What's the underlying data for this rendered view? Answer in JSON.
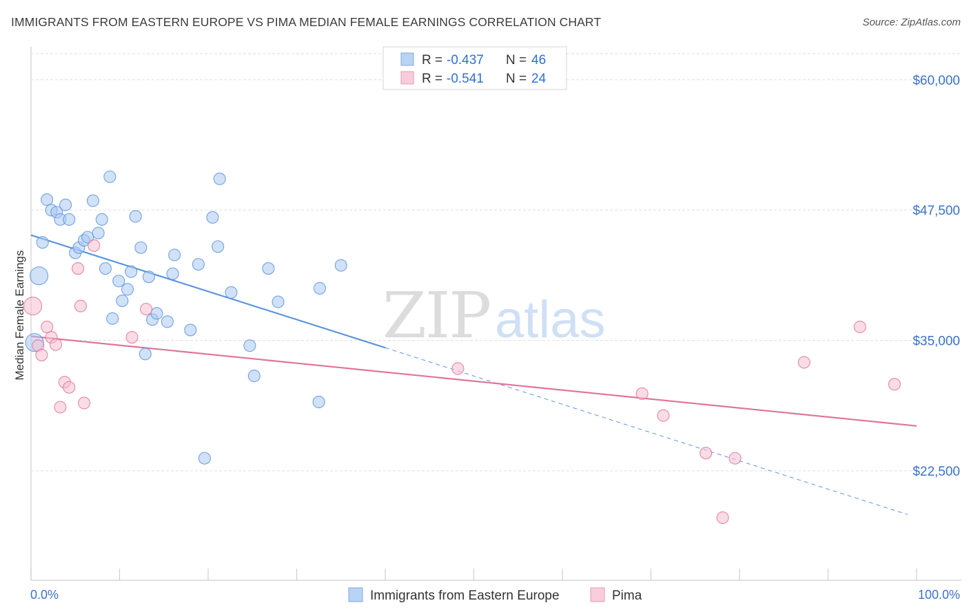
{
  "header": {
    "title": "IMMIGRANTS FROM EASTERN EUROPE VS PIMA MEDIAN FEMALE EARNINGS CORRELATION CHART",
    "source": "Source: ZipAtlas.com"
  },
  "watermark": {
    "zip": "ZIP",
    "atlas": "atlas"
  },
  "legend": {
    "rows": [
      {
        "r_label": "R =",
        "r_value": "-0.437",
        "n_label": "N =",
        "n_value": "46",
        "color": "#9dc3f0"
      },
      {
        "r_label": "R =",
        "r_value": "-0.541",
        "n_label": "N =",
        "n_value": "24",
        "color": "#f5b6c9"
      }
    ]
  },
  "chart_data": {
    "type": "scatter",
    "ylabel": "Median Female Earnings",
    "xlabel": "",
    "x_tick_labels": [
      "0.0%",
      "100.0%"
    ],
    "y_tick_labels": [
      "$60,000",
      "$47,500",
      "$35,000",
      "$22,500"
    ],
    "y_ticks": [
      60000,
      47500,
      35000,
      22500
    ],
    "xlim": [
      0,
      100
    ],
    "ylim": [
      12000,
      62500
    ],
    "grid": true,
    "legend_position": "top-center",
    "series": [
      {
        "name": "Immigrants from Eastern Europe",
        "color": "#5b94e0",
        "fill": "#a9c9f2",
        "trend": {
          "x": [
            0,
            40
          ],
          "y": [
            45100,
            34300
          ],
          "dashed_to": {
            "x": 99,
            "y": 18300
          }
        },
        "points": [
          {
            "x": 0.4,
            "y": 34800,
            "big": true
          },
          {
            "x": 0.9,
            "y": 41200,
            "big": true
          },
          {
            "x": 1.3,
            "y": 44400
          },
          {
            "x": 1.8,
            "y": 48500
          },
          {
            "x": 2.3,
            "y": 47500
          },
          {
            "x": 2.9,
            "y": 47300
          },
          {
            "x": 3.3,
            "y": 46600
          },
          {
            "x": 3.9,
            "y": 48000
          },
          {
            "x": 4.3,
            "y": 46600
          },
          {
            "x": 5.0,
            "y": 43400
          },
          {
            "x": 5.4,
            "y": 43900
          },
          {
            "x": 6.0,
            "y": 44600
          },
          {
            "x": 6.4,
            "y": 44900
          },
          {
            "x": 7.0,
            "y": 48400
          },
          {
            "x": 7.6,
            "y": 45300
          },
          {
            "x": 8.0,
            "y": 46600
          },
          {
            "x": 8.4,
            "y": 41900
          },
          {
            "x": 8.9,
            "y": 50700
          },
          {
            "x": 9.2,
            "y": 37100
          },
          {
            "x": 9.9,
            "y": 40700
          },
          {
            "x": 10.3,
            "y": 38800
          },
          {
            "x": 10.9,
            "y": 39900
          },
          {
            "x": 11.3,
            "y": 41600
          },
          {
            "x": 11.8,
            "y": 46900
          },
          {
            "x": 12.4,
            "y": 43900
          },
          {
            "x": 12.9,
            "y": 33700
          },
          {
            "x": 13.3,
            "y": 41100
          },
          {
            "x": 13.7,
            "y": 37000
          },
          {
            "x": 14.2,
            "y": 37600
          },
          {
            "x": 15.4,
            "y": 36800
          },
          {
            "x": 16.2,
            "y": 43200
          },
          {
            "x": 16.0,
            "y": 41400
          },
          {
            "x": 18.0,
            "y": 36000
          },
          {
            "x": 18.9,
            "y": 42300
          },
          {
            "x": 19.6,
            "y": 23700
          },
          {
            "x": 20.5,
            "y": 46800
          },
          {
            "x": 21.1,
            "y": 44000
          },
          {
            "x": 21.3,
            "y": 50500
          },
          {
            "x": 22.6,
            "y": 39600
          },
          {
            "x": 24.7,
            "y": 34500
          },
          {
            "x": 25.2,
            "y": 31600
          },
          {
            "x": 26.8,
            "y": 41900
          },
          {
            "x": 27.9,
            "y": 38700
          },
          {
            "x": 32.5,
            "y": 29100
          },
          {
            "x": 32.6,
            "y": 40000
          },
          {
            "x": 35.0,
            "y": 42200
          }
        ]
      },
      {
        "name": "Pima",
        "color": "#e0739a",
        "fill": "#f6c0d2",
        "trend": {
          "x": [
            0,
            100
          ],
          "y": [
            35400,
            26800
          ]
        },
        "points": [
          {
            "x": 0.2,
            "y": 38300,
            "big": true
          },
          {
            "x": 0.8,
            "y": 34500
          },
          {
            "x": 1.2,
            "y": 33600
          },
          {
            "x": 1.8,
            "y": 36300
          },
          {
            "x": 2.3,
            "y": 35300
          },
          {
            "x": 2.8,
            "y": 34600
          },
          {
            "x": 3.3,
            "y": 28600
          },
          {
            "x": 3.8,
            "y": 31000
          },
          {
            "x": 4.3,
            "y": 30500
          },
          {
            "x": 5.3,
            "y": 41900
          },
          {
            "x": 5.6,
            "y": 38300
          },
          {
            "x": 6.0,
            "y": 29000
          },
          {
            "x": 7.1,
            "y": 44100
          },
          {
            "x": 11.4,
            "y": 35300
          },
          {
            "x": 13.0,
            "y": 38000
          },
          {
            "x": 48.2,
            "y": 32300
          },
          {
            "x": 69.0,
            "y": 29900
          },
          {
            "x": 71.4,
            "y": 27800
          },
          {
            "x": 76.2,
            "y": 24200
          },
          {
            "x": 78.1,
            "y": 18000
          },
          {
            "x": 79.5,
            "y": 23700
          },
          {
            "x": 87.3,
            "y": 32900
          },
          {
            "x": 93.6,
            "y": 36300
          },
          {
            "x": 97.5,
            "y": 30800
          }
        ]
      }
    ]
  }
}
